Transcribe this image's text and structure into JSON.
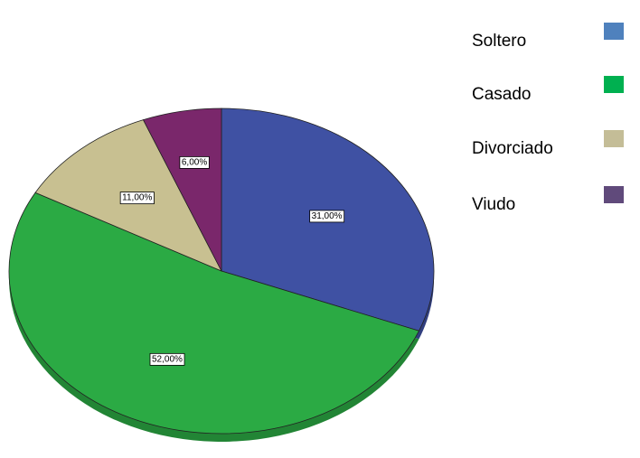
{
  "chart_data": {
    "type": "pie",
    "categories": [
      "Soltero",
      "Casado",
      "Divorciado",
      "Viudo"
    ],
    "values": [
      31,
      52,
      11,
      6
    ],
    "value_labels": [
      "31,00%",
      "52,00%",
      "11,00%",
      "6,00%"
    ],
    "colors": [
      "#3f51a3",
      "#2baa44",
      "#c8c091",
      "#7a276b"
    ],
    "legend_colors": [
      "#4f81bd",
      "#00b050",
      "#c4bd97",
      "#604a7b"
    ]
  }
}
